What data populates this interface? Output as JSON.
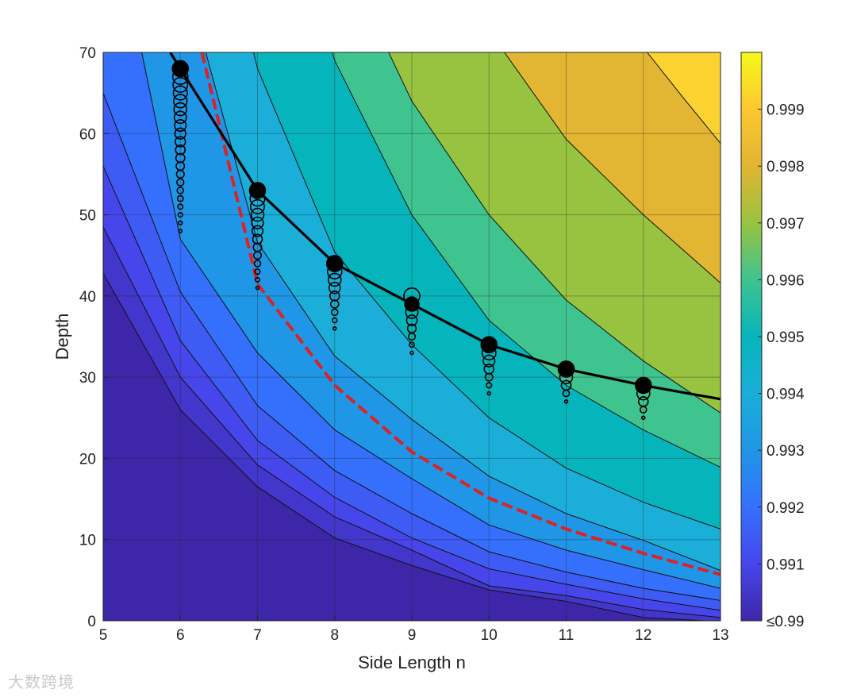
{
  "chart_data": {
    "type": "contour",
    "xlabel": "Side Length n",
    "ylabel": "Depth",
    "xlim": [
      5,
      13
    ],
    "ylim": [
      0,
      70
    ],
    "xticks": [
      "5",
      "6",
      "7",
      "8",
      "9",
      "10",
      "11",
      "12",
      "13"
    ],
    "yticks": [
      "0",
      "10",
      "20",
      "30",
      "40",
      "50",
      "60",
      "70"
    ],
    "grid": true,
    "contour_levels": [
      0.99,
      0.9905,
      0.991,
      0.9915,
      0.992,
      0.993,
      0.994,
      0.995,
      0.996,
      0.997,
      0.998,
      0.999
    ],
    "contour_lines": [
      {
        "level": 0.9905,
        "x": [
          5,
          6,
          7,
          8,
          9,
          10,
          11,
          12,
          12.8
        ],
        "y": [
          42.8,
          26,
          16.5,
          10.2,
          6.8,
          3.8,
          2.4,
          0.4,
          0
        ]
      },
      {
        "level": 0.991,
        "x": [
          5,
          6,
          7,
          8,
          9,
          10,
          11,
          12,
          13
        ],
        "y": [
          48.5,
          30,
          19.2,
          12.8,
          8.7,
          4.3,
          3.1,
          1.4,
          0.4
        ]
      },
      {
        "level": 0.9915,
        "x": [
          5,
          6,
          7,
          8,
          9,
          10,
          11,
          12,
          13
        ],
        "y": [
          56,
          34.5,
          22.2,
          15.2,
          10.2,
          6.4,
          4.5,
          2.7,
          1.3
        ]
      },
      {
        "level": 0.992,
        "x": [
          5,
          6,
          7,
          8,
          9,
          10,
          11,
          12,
          13
        ],
        "y": [
          65,
          40.5,
          26.5,
          18.5,
          13.2,
          8.5,
          6,
          4,
          2.5
        ]
      },
      {
        "level": 0.993,
        "x": [
          5.5,
          6,
          7,
          8,
          9,
          10,
          11,
          12,
          13
        ],
        "y": [
          70,
          47,
          33,
          23.5,
          17.5,
          11.8,
          8.7,
          6.3,
          4
        ]
      },
      {
        "level": 0.994,
        "x": [
          6.33,
          7,
          8,
          9,
          10,
          11,
          12,
          13
        ],
        "y": [
          70,
          46.6,
          32.6,
          24.8,
          17.8,
          13.2,
          9.9,
          6.2
        ]
      },
      {
        "level": 0.995,
        "x": [
          6.95,
          7,
          8,
          9,
          10,
          11,
          12,
          13
        ],
        "y": [
          70,
          68,
          45.4,
          34,
          25,
          18.8,
          14.6,
          11.3
        ]
      },
      {
        "level": 0.996,
        "x": [
          7.97,
          8,
          9,
          10,
          11,
          12,
          13
        ],
        "y": [
          70,
          69,
          50,
          37,
          29,
          23.5,
          18.9
        ]
      },
      {
        "level": 0.997,
        "x": [
          8.7,
          9,
          10,
          11,
          12,
          13
        ],
        "y": [
          70,
          64,
          50,
          39.5,
          32,
          25.6
        ]
      },
      {
        "level": 0.998,
        "x": [
          10.2,
          11,
          12,
          13
        ],
        "y": [
          70,
          59.3,
          50,
          41.6
        ]
      },
      {
        "level": 0.999,
        "x": [
          12.05,
          12.5,
          13
        ],
        "y": [
          70,
          64.6,
          58.8
        ]
      }
    ],
    "colorbar": {
      "range": [
        0.99,
        1.0
      ],
      "tick_values": [
        0.99,
        0.991,
        0.992,
        0.993,
        0.994,
        0.995,
        0.996,
        0.997,
        0.998,
        0.999
      ],
      "tick_labels": [
        "≤0.99",
        "0.991",
        "0.992",
        "0.993",
        "0.994",
        "0.995",
        "0.996",
        "0.997",
        "0.998",
        "0.999"
      ]
    },
    "red_dashed_curve": {
      "color": "#dd2222",
      "x": [
        6.28,
        7,
        8,
        9,
        10,
        11,
        12,
        13
      ],
      "y": [
        70,
        41.5,
        29,
        20.8,
        15.1,
        11.3,
        8.3,
        5.7
      ]
    },
    "optimal_curve": {
      "color": "#000000",
      "x": [
        5.87,
        6,
        7,
        8,
        9,
        10,
        11,
        12,
        13
      ],
      "y": [
        70,
        68,
        53,
        44,
        39,
        34,
        31,
        29,
        27.3
      ]
    },
    "optimal_points": [
      {
        "x": 6,
        "y": 68
      },
      {
        "x": 7,
        "y": 53
      },
      {
        "x": 8,
        "y": 44
      },
      {
        "x": 9,
        "y": 39
      },
      {
        "x": 10,
        "y": 34
      },
      {
        "x": 11,
        "y": 31
      },
      {
        "x": 12,
        "y": 29
      }
    ],
    "ring_columns": [
      {
        "x": 6,
        "y_min": 48,
        "y_max": 68
      },
      {
        "x": 7,
        "y_min": 41,
        "y_max": 53
      },
      {
        "x": 8,
        "y_min": 36,
        "y_max": 44
      },
      {
        "x": 9,
        "y_min": 33,
        "y_max": 40
      },
      {
        "x": 10,
        "y_min": 28,
        "y_max": 34
      },
      {
        "x": 11,
        "y_min": 27,
        "y_max": 31
      },
      {
        "x": 12,
        "y_min": 25,
        "y_max": 29
      }
    ]
  },
  "watermark": "大数跨境"
}
